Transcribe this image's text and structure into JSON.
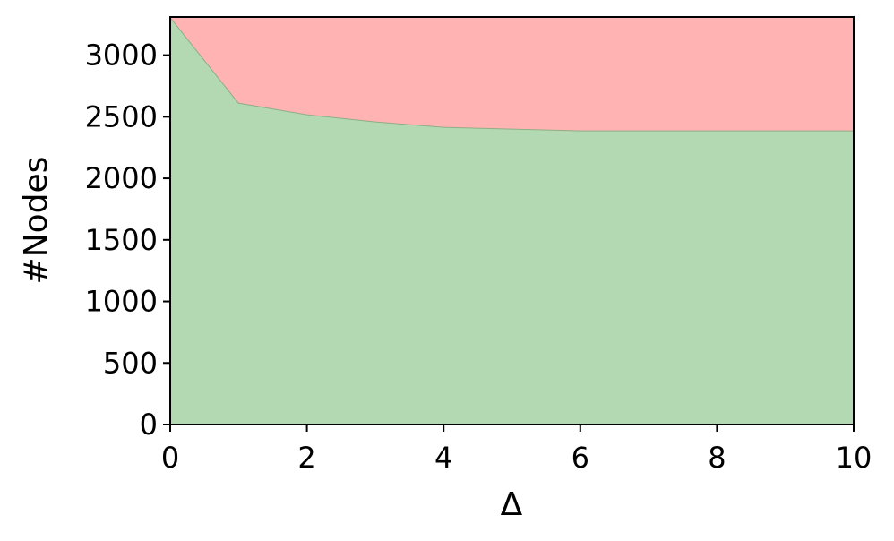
{
  "chart_data": {
    "type": "stackedarea",
    "x": [
      0,
      1,
      2,
      3,
      4,
      5,
      6,
      7,
      8,
      9,
      10
    ],
    "series": [
      {
        "color": "#b3d9b3",
        "values": [
          3310,
          2614,
          2520,
          2462,
          2418,
          2403,
          2389,
          2389,
          2389,
          2389,
          2389
        ]
      },
      {
        "color": "#ffb3b3",
        "values": [
          0,
          696,
          790,
          848,
          892,
          907,
          921,
          921,
          921,
          921,
          921
        ]
      }
    ],
    "xlabel": "Δ",
    "ylabel": "#Nodes",
    "xlim": [
      0,
      10
    ],
    "xticks": [
      0,
      2,
      4,
      6,
      8,
      10
    ],
    "ylim": [
      0,
      3310
    ],
    "yticks": [
      0,
      500,
      1000,
      1500,
      2000,
      2500,
      3000
    ]
  }
}
